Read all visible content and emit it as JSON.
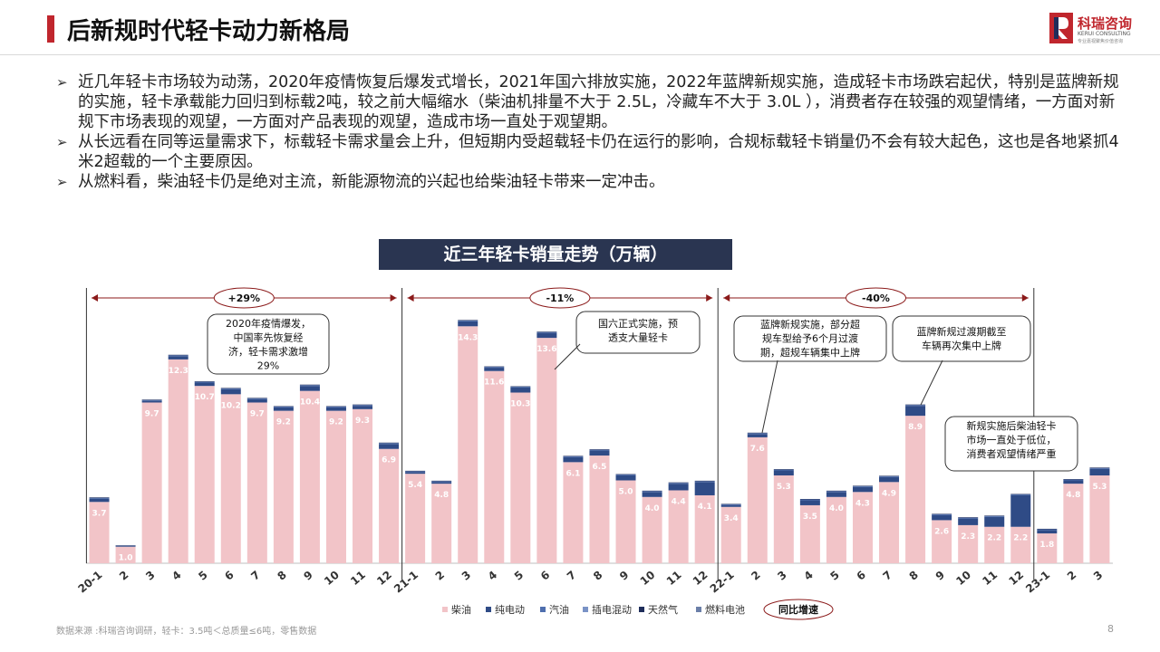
{
  "header": {
    "title": "后新规时代轻卡动力新格局",
    "logo": {
      "cn": "科瑞咨询",
      "en": "KERUI CONSULTING",
      "sub": "专业嘉视聚焦价值咨询",
      "mark": "R"
    }
  },
  "bullets": [
    "近几年轻卡市场较为动荡，2020年疫情恢复后爆发式增长，2021年国六排放实施，2022年蓝牌新规实施，造成轻卡市场跌宕起伏，特别是蓝牌新规的实施，轻卡承载能力回归到标载2吨，较之前大幅缩水（柴油机排量不大于 2.5L，冷藏车不大于 3.0L ），消费者存在较强的观望情绪，一方面对新规下市场表现的观望，一方面对产品表现的观望，造成市场一直处于观望期。",
    "从长远看在同等运量需求下，标载轻卡需求量会上升，但短期内受超载轻卡仍在运行的影响，合规标载轻卡销量仍不会有较大起色，这也是各地紧抓4米2超载的一个主要原因。",
    "从燃料看，柴油轻卡仍是绝对主流，新能源物流的兴起也给柴油轻卡带来一定冲击。"
  ],
  "colors": {
    "accent": "#c0262d",
    "title_box": "#2a3551",
    "diesel": "#f2c4c8",
    "electric": "#2f4b86",
    "navy": "#1f2d5a"
  },
  "chart_data": {
    "type": "bar",
    "title": "近三年轻卡销量走势（万辆）",
    "categories": [
      "20-1",
      "2",
      "3",
      "4",
      "5",
      "6",
      "7",
      "8",
      "9",
      "10",
      "11",
      "12",
      "21-1",
      "2",
      "3",
      "4",
      "5",
      "6",
      "7",
      "8",
      "9",
      "10",
      "11",
      "12",
      "22-1",
      "2",
      "3",
      "4",
      "5",
      "6",
      "7",
      "8",
      "9",
      "10",
      "11",
      "12",
      "23-1",
      "2",
      "3"
    ],
    "series": [
      {
        "name": "柴油",
        "values": [
          3.7,
          1.0,
          9.7,
          12.3,
          10.7,
          10.2,
          9.7,
          9.2,
          10.4,
          9.2,
          9.3,
          6.9,
          5.4,
          4.8,
          14.3,
          11.6,
          10.3,
          13.6,
          6.1,
          6.5,
          5.0,
          4.0,
          4.4,
          4.1,
          3.4,
          7.6,
          5.3,
          3.5,
          4.0,
          4.3,
          4.9,
          8.9,
          2.6,
          2.3,
          2.2,
          2.2,
          1.8,
          4.8,
          5.3
        ]
      },
      {
        "name": "纯电动",
        "values": [
          0.2,
          0.05,
          0.1,
          0.2,
          0.2,
          0.3,
          0.2,
          0.2,
          0.3,
          0.2,
          0.2,
          0.3,
          0.1,
          0.1,
          0.3,
          0.2,
          0.3,
          0.3,
          0.3,
          0.3,
          0.3,
          0.3,
          0.4,
          0.8,
          0.1,
          0.2,
          0.3,
          0.3,
          0.3,
          0.3,
          0.3,
          0.6,
          0.3,
          0.4,
          0.6,
          1.9,
          0.2,
          0.2,
          0.4
        ]
      },
      {
        "name": "汽油",
        "values": [
          0.05,
          0.02,
          0.05,
          0.05,
          0.05,
          0.05,
          0.05,
          0.05,
          0.05,
          0.05,
          0.05,
          0.05,
          0.05,
          0.05,
          0.05,
          0.05,
          0.05,
          0.05,
          0.05,
          0.05,
          0.05,
          0.05,
          0.05,
          0.05,
          0.05,
          0.05,
          0.05,
          0.05,
          0.05,
          0.05,
          0.05,
          0.05,
          0.05,
          0.05,
          0.05,
          0.05,
          0.05,
          0.05,
          0.05
        ]
      },
      {
        "name": "插电混动",
        "values": [
          0,
          0,
          0,
          0,
          0,
          0,
          0,
          0,
          0,
          0,
          0,
          0,
          0,
          0,
          0,
          0,
          0,
          0,
          0,
          0,
          0,
          0,
          0,
          0,
          0,
          0,
          0,
          0,
          0,
          0,
          0,
          0,
          0,
          0,
          0,
          0,
          0,
          0,
          0
        ]
      },
      {
        "name": "天然气",
        "values": [
          0.03,
          0.02,
          0.03,
          0.03,
          0.03,
          0.03,
          0.03,
          0.03,
          0.03,
          0.03,
          0.03,
          0.03,
          0.03,
          0.03,
          0.03,
          0.03,
          0.03,
          0.03,
          0.03,
          0.03,
          0.03,
          0.03,
          0.03,
          0.03,
          0.03,
          0.03,
          0.03,
          0.03,
          0.03,
          0.03,
          0.03,
          0.03,
          0.03,
          0.03,
          0.03,
          0.03,
          0.03,
          0.03,
          0.03
        ]
      },
      {
        "name": "燃料电池",
        "values": [
          0,
          0,
          0,
          0,
          0,
          0,
          0,
          0,
          0,
          0,
          0,
          0,
          0,
          0,
          0,
          0,
          0,
          0,
          0,
          0,
          0,
          0,
          0,
          0,
          0,
          0,
          0,
          0,
          0,
          0,
          0,
          0,
          0,
          0,
          0,
          0,
          0,
          0,
          0
        ]
      }
    ],
    "data_labels": [
      "3.7",
      "1.0",
      "9.7",
      "12.3",
      "10.7",
      "10.2",
      "9.7",
      "9.2",
      "10.4",
      "9.2",
      "9.3",
      "6.9",
      "5.4",
      "4.8",
      "14.3",
      "11.6",
      "10.3",
      "13.6",
      "6.1",
      "6.5",
      "5.0",
      "4.0",
      "4.4",
      "4.1",
      "3.4",
      "7.6",
      "5.3",
      "3.5",
      "4.0",
      "4.3",
      "4.9",
      "8.9",
      "2.6",
      "2.3",
      "2.2",
      "2.2",
      "1.8",
      "4.8",
      "5.3"
    ],
    "ylim": [
      0,
      16
    ],
    "legend": [
      "柴油",
      "纯电动",
      "汽油",
      "插电混动",
      "天然气",
      "燃料电池"
    ],
    "legend_extra": "同比增速",
    "growth": [
      {
        "label": "+29%",
        "from": 0,
        "to": 11
      },
      {
        "label": "-11%",
        "from": 12,
        "to": 23
      },
      {
        "label": "-40%",
        "from": 24,
        "to": 35
      }
    ],
    "annotations": [
      {
        "text": [
          "2020年疫情爆发，",
          "中国率先恢复经",
          "济，轻卡需求激增",
          "29%"
        ]
      },
      {
        "text": [
          "国六正式实施，预",
          "透支大量轻卡"
        ]
      },
      {
        "text": [
          "蓝牌新规实施，部分超",
          "规车型给予6个月过渡",
          "期，超规车辆集中上牌"
        ]
      },
      {
        "text": [
          "蓝牌新规过渡期截至",
          "车辆再次集中上牌"
        ]
      },
      {
        "text": [
          "新规实施后柴油轻卡",
          "市场一直处于低位，",
          "消费者观望情绪严重"
        ]
      }
    ]
  },
  "footer": {
    "source": "数据来源 :科瑞咨询调研，轻卡：3.5吨＜总质量≤6吨，零售数据",
    "page": "8"
  }
}
